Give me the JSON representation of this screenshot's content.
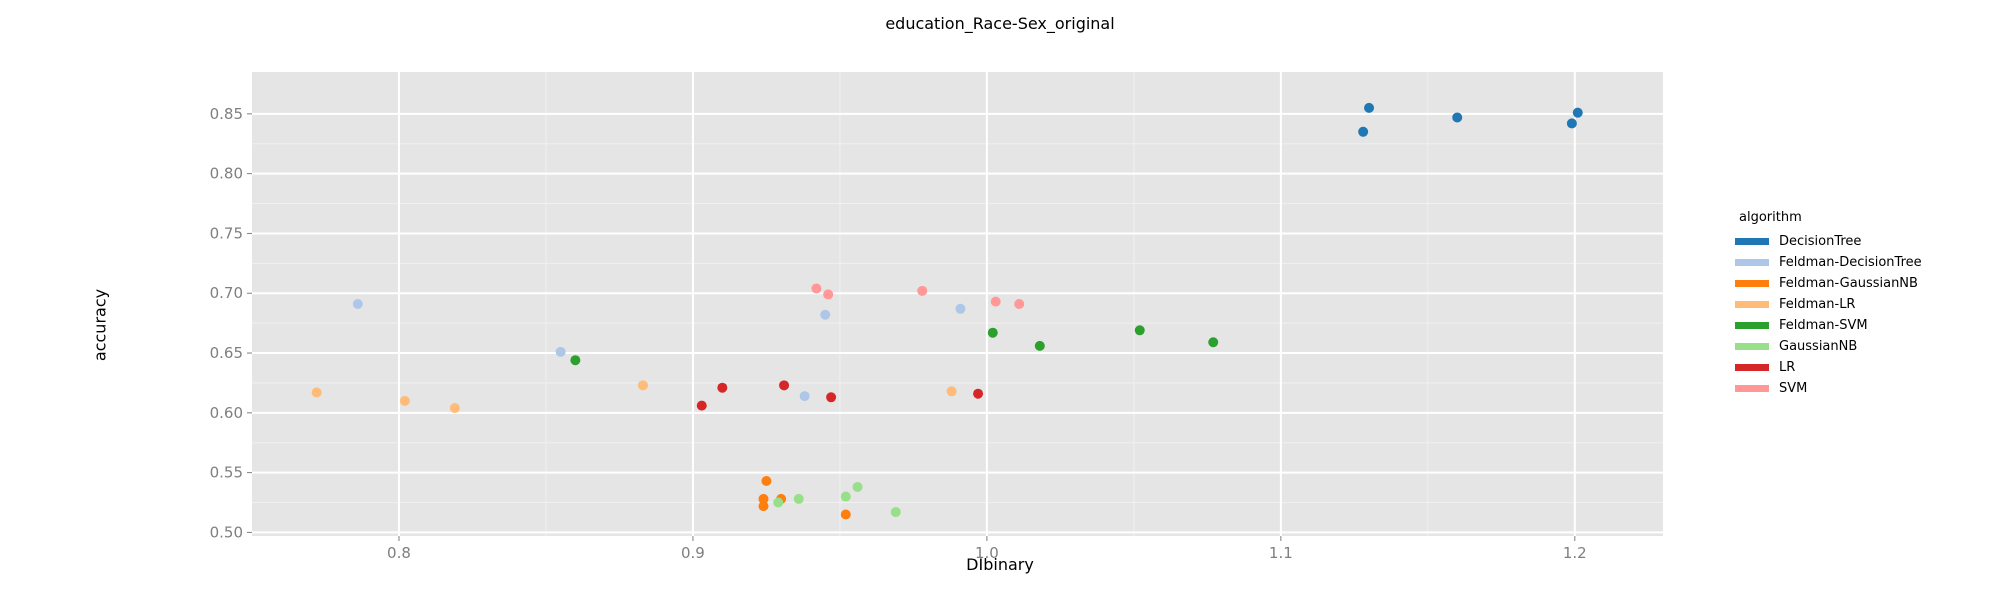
{
  "chart_data": {
    "type": "scatter",
    "title": "education_Race-Sex_original",
    "xlabel": "DIbinary",
    "ylabel": "accuracy",
    "xlim": [
      0.75,
      1.23
    ],
    "ylim": [
      0.497,
      0.885
    ],
    "xticks": [
      0.8,
      0.9,
      1.0,
      1.1,
      1.2
    ],
    "xtick_labels": [
      "0.8",
      "0.9",
      "1.0",
      "1.1",
      "1.2"
    ],
    "yticks": [
      0.5,
      0.55,
      0.6,
      0.65,
      0.7,
      0.75,
      0.8,
      0.85
    ],
    "ytick_labels": [
      "0.50",
      "0.55",
      "0.60",
      "0.65",
      "0.70",
      "0.75",
      "0.80",
      "0.85"
    ],
    "grid": true,
    "legend_title": "algorithm",
    "legend_position": "right",
    "series": [
      {
        "name": "DecisionTree",
        "color": "#1f77b4",
        "points": [
          [
            1.128,
            0.835
          ],
          [
            1.13,
            0.855
          ],
          [
            1.16,
            0.847
          ],
          [
            1.199,
            0.842
          ],
          [
            1.201,
            0.851
          ]
        ]
      },
      {
        "name": "Feldman-DecisionTree",
        "color": "#aec7e8",
        "points": [
          [
            0.786,
            0.691
          ],
          [
            0.855,
            0.651
          ],
          [
            0.938,
            0.614
          ],
          [
            0.945,
            0.682
          ],
          [
            0.991,
            0.687
          ]
        ]
      },
      {
        "name": "Feldman-GaussianNB",
        "color": "#ff7f0e",
        "points": [
          [
            0.925,
            0.543
          ],
          [
            0.924,
            0.528
          ],
          [
            0.93,
            0.528
          ],
          [
            0.924,
            0.522
          ],
          [
            0.952,
            0.515
          ]
        ]
      },
      {
        "name": "Feldman-LR",
        "color": "#ffbb78",
        "points": [
          [
            0.772,
            0.617
          ],
          [
            0.802,
            0.61
          ],
          [
            0.819,
            0.604
          ],
          [
            0.883,
            0.623
          ],
          [
            0.988,
            0.618
          ]
        ]
      },
      {
        "name": "Feldman-SVM",
        "color": "#2ca02c",
        "points": [
          [
            0.86,
            0.644
          ],
          [
            1.002,
            0.667
          ],
          [
            1.018,
            0.656
          ],
          [
            1.052,
            0.669
          ],
          [
            1.077,
            0.659
          ]
        ]
      },
      {
        "name": "GaussianNB",
        "color": "#98df8a",
        "points": [
          [
            0.929,
            0.525
          ],
          [
            0.936,
            0.528
          ],
          [
            0.952,
            0.53
          ],
          [
            0.956,
            0.538
          ],
          [
            0.969,
            0.517
          ]
        ]
      },
      {
        "name": "LR",
        "color": "#d62728",
        "points": [
          [
            0.903,
            0.606
          ],
          [
            0.91,
            0.621
          ],
          [
            0.931,
            0.623
          ],
          [
            0.947,
            0.613
          ],
          [
            0.997,
            0.616
          ]
        ]
      },
      {
        "name": "SVM",
        "color": "#ff9896",
        "points": [
          [
            0.942,
            0.704
          ],
          [
            0.946,
            0.699
          ],
          [
            0.978,
            0.702
          ],
          [
            1.003,
            0.693
          ],
          [
            1.011,
            0.691
          ]
        ]
      }
    ]
  }
}
